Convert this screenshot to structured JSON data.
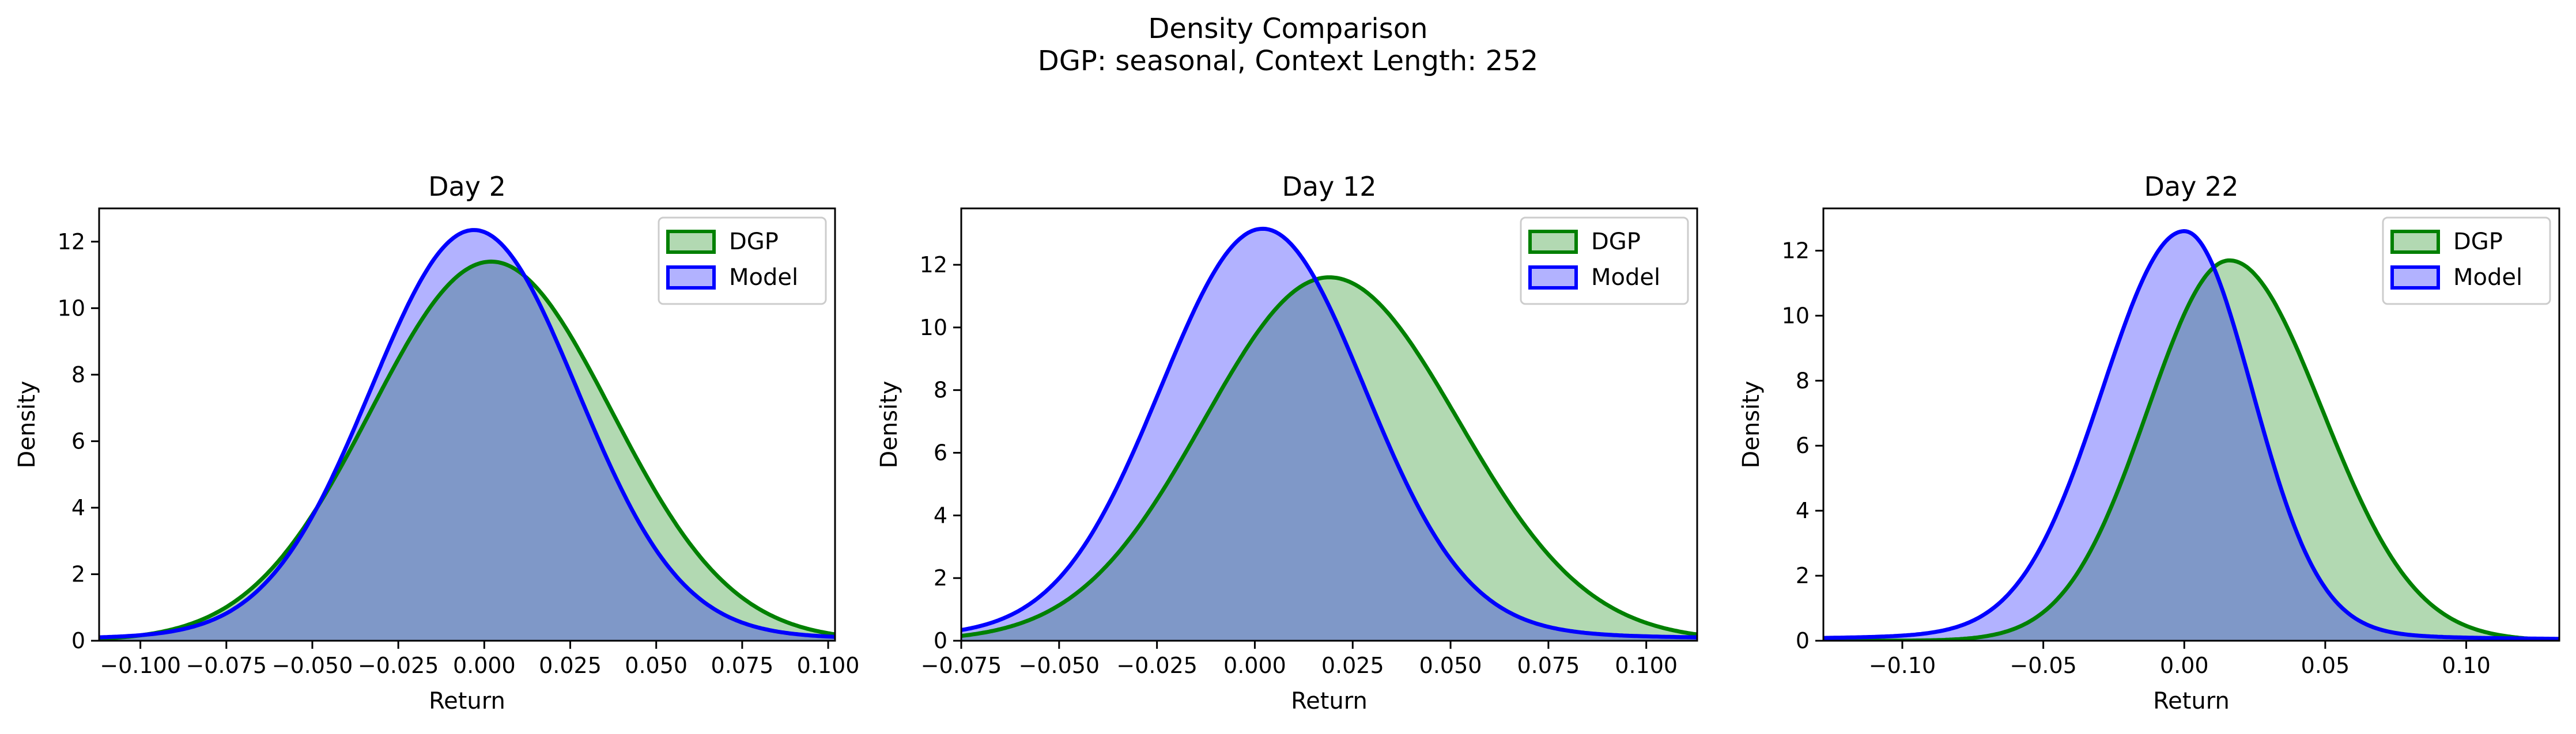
{
  "figure": {
    "title_line1": "Density Comparison",
    "title_line2": "DGP: seasonal, Context Length: 252"
  },
  "colors": {
    "dgp_line": "#008000",
    "dgp_fill": "#b2d9b2",
    "model_line": "#0000ff",
    "model_fill": "#b2b2ff",
    "overlap_fill": "#7f98c8"
  },
  "chart_data": [
    {
      "type": "area",
      "title": "Day 2",
      "xlabel": "Return",
      "ylabel": "Density",
      "xlim": [
        -0.112,
        0.102
      ],
      "ylim": [
        0,
        13
      ],
      "xticks": [
        -0.1,
        -0.075,
        -0.05,
        -0.025,
        0.0,
        0.025,
        0.05,
        0.075,
        0.1
      ],
      "xtick_labels": [
        "−0.100",
        "−0.075",
        "−0.050",
        "−0.025",
        "0.000",
        "0.025",
        "0.050",
        "0.075",
        "0.100"
      ],
      "yticks": [
        0,
        2,
        4,
        6,
        8,
        10,
        12
      ],
      "ytick_labels": [
        "0",
        "2",
        "4",
        "6",
        "8",
        "10",
        "12"
      ],
      "legend": {
        "position": "upper-right",
        "entries": [
          "DGP",
          "Model"
        ]
      },
      "series": [
        {
          "name": "DGP",
          "peak_x": 0.002,
          "peak_density": 11.4,
          "sigma_left": 0.035,
          "sigma_right": 0.035,
          "tail_weight": 0.0
        },
        {
          "name": "Model",
          "peak_x": -0.003,
          "peak_density": 12.35,
          "sigma_left": 0.03,
          "sigma_right": 0.03,
          "tail_weight": 0.03
        }
      ]
    },
    {
      "type": "area",
      "title": "Day 12",
      "xlabel": "Return",
      "ylabel": "Density",
      "xlim": [
        -0.075,
        0.113
      ],
      "ylim": [
        0,
        13.8
      ],
      "xticks": [
        -0.075,
        -0.05,
        -0.025,
        0.0,
        0.025,
        0.05,
        0.075,
        0.1
      ],
      "xtick_labels": [
        "−0.075",
        "−0.050",
        "−0.025",
        "0.000",
        "0.025",
        "0.050",
        "0.075",
        "0.100"
      ],
      "yticks": [
        0,
        2,
        4,
        6,
        8,
        10,
        12
      ],
      "ytick_labels": [
        "0",
        "2",
        "4",
        "6",
        "8",
        "10",
        "12"
      ],
      "legend": {
        "position": "upper-right",
        "entries": [
          "DGP",
          "Model"
        ]
      },
      "series": [
        {
          "name": "DGP",
          "peak_x": 0.019,
          "peak_density": 11.6,
          "sigma_left": 0.032,
          "sigma_right": 0.033,
          "tail_weight": 0.0
        },
        {
          "name": "Model",
          "peak_x": 0.002,
          "peak_density": 13.15,
          "sigma_left": 0.026,
          "sigma_right": 0.026,
          "tail_weight": 0.045
        }
      ]
    },
    {
      "type": "area",
      "title": "Day 22",
      "xlabel": "Return",
      "ylabel": "Density",
      "xlim": [
        -0.128,
        0.133
      ],
      "ylim": [
        0,
        13.3
      ],
      "xticks": [
        -0.1,
        -0.05,
        0.0,
        0.05,
        0.1
      ],
      "xtick_labels": [
        "−0.10",
        "−0.05",
        "0.00",
        "0.05",
        "0.10"
      ],
      "yticks": [
        0,
        2,
        4,
        6,
        8,
        10,
        12
      ],
      "ytick_labels": [
        "0",
        "2",
        "4",
        "6",
        "8",
        "10",
        "12"
      ],
      "legend": {
        "position": "upper-right",
        "entries": [
          "DGP",
          "Model"
        ]
      },
      "series": [
        {
          "name": "DGP",
          "peak_x": 0.016,
          "peak_density": 11.7,
          "sigma_left": 0.029,
          "sigma_right": 0.033,
          "tail_weight": 0.0
        },
        {
          "name": "Model",
          "peak_x": 0.0,
          "peak_density": 12.6,
          "sigma_left": 0.029,
          "sigma_right": 0.024,
          "tail_weight": 0.04
        }
      ]
    }
  ]
}
